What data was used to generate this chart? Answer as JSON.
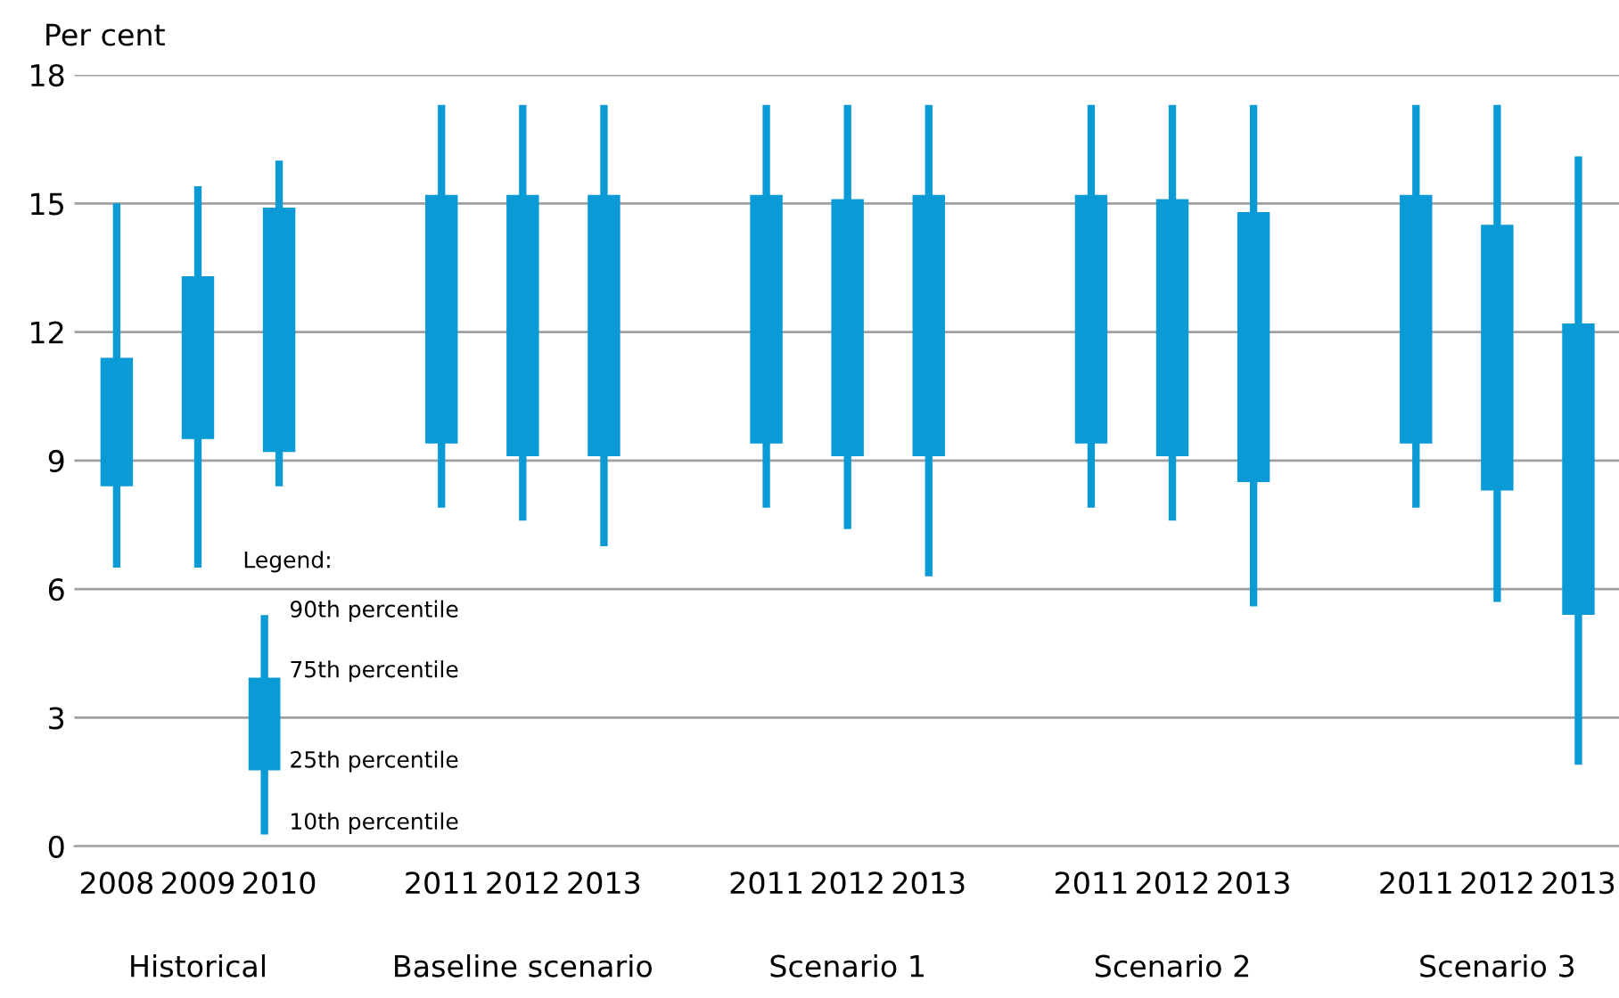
{
  "chart_data": {
    "type": "candlestick",
    "ylabel": "Per cent",
    "categories": [
      "2008",
      "2009",
      "2010",
      null,
      "2011",
      "2012",
      "2013",
      null,
      "2011",
      "2012",
      "2013",
      null,
      "2011",
      "2012",
      "2013",
      null,
      "2011",
      "2012",
      "2013"
    ],
    "ohlc": [
      [
        8.4,
        15.0,
        6.5,
        11.4
      ],
      [
        9.5,
        15.4,
        6.5,
        13.3
      ],
      [
        9.2,
        16.0,
        8.4,
        14.9
      ],
      null,
      [
        9.4,
        17.3,
        7.9,
        15.2
      ],
      [
        9.1,
        17.3,
        7.6,
        15.2
      ],
      [
        9.1,
        17.3,
        7.0,
        15.2
      ],
      null,
      [
        9.4,
        17.3,
        7.9,
        15.2
      ],
      [
        9.1,
        17.3,
        7.4,
        15.1
      ],
      [
        9.1,
        17.3,
        6.3,
        15.2
      ],
      null,
      [
        9.4,
        17.3,
        7.9,
        15.2
      ],
      [
        9.1,
        17.3,
        7.6,
        15.1
      ],
      [
        8.5,
        17.3,
        5.6,
        14.8
      ],
      null,
      [
        9.4,
        17.3,
        7.9,
        15.2
      ],
      [
        8.3,
        17.3,
        5.7,
        14.5
      ],
      [
        5.4,
        16.1,
        1.9,
        12.2
      ]
    ],
    "color": "#0a9bd7",
    "ylim": [
      0,
      18
    ],
    "yticks": [
      0,
      3,
      6,
      9,
      12,
      15,
      18
    ],
    "grid": "y",
    "legend_title": "Legend:",
    "annotations": [
      "90th percentile",
      "75th percentile",
      "25th percentile",
      "10th percentile",
      "Historical",
      "Baseline scenario",
      "Scenario 1",
      "Scenario 2",
      "Scenario 3"
    ]
  }
}
